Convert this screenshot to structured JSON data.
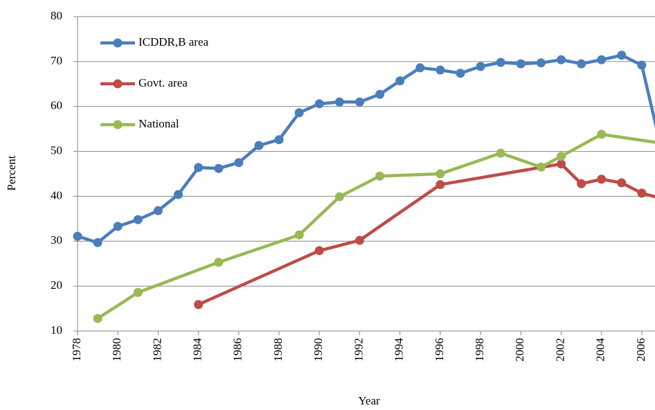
{
  "chart_data": {
    "type": "line",
    "x_label": "Year",
    "y_label": "Percent",
    "xlim": [
      1978,
      2007
    ],
    "ylim": [
      10,
      80
    ],
    "xticks": [
      1978,
      1980,
      1982,
      1984,
      1986,
      1988,
      1990,
      1992,
      1994,
      1996,
      1998,
      2000,
      2002,
      2004,
      2006
    ],
    "yticks": [
      10,
      20,
      30,
      40,
      50,
      60,
      70,
      80
    ],
    "grid": true,
    "legend": "upper left",
    "series": [
      {
        "name": "ICDDR,B area",
        "color": "#4a7ebb",
        "x": [
          1978,
          1979,
          1980,
          1981,
          1982,
          1983,
          1984,
          1985,
          1986,
          1987,
          1988,
          1989,
          1990,
          1991,
          1992,
          1993,
          1994,
          1995,
          1996,
          1997,
          1998,
          1999,
          2000,
          2001,
          2002,
          2003,
          2004,
          2005,
          2006,
          2007
        ],
        "values": [
          31.1,
          29.7,
          33.3,
          34.8,
          36.8,
          40.4,
          46.4,
          46.2,
          47.5,
          51.3,
          52.6,
          58.6,
          60.6,
          61.0,
          61.0,
          62.7,
          65.7,
          68.6,
          68.1,
          67.4,
          68.9,
          69.8,
          69.5,
          69.7,
          70.4,
          69.5,
          70.4,
          71.4,
          69.2,
          50
        ]
      },
      {
        "name": "Govt. area",
        "color": "#be4b48",
        "x": [
          1984,
          1990,
          1992,
          1996,
          2002,
          2003,
          2004,
          2005,
          2006,
          2007
        ],
        "values": [
          15.9,
          27.9,
          30.2,
          42.6,
          47.2,
          42.8,
          43.8,
          43.0,
          40.7,
          39.5
        ]
      },
      {
        "name": "National",
        "color": "#98b954",
        "x": [
          1979,
          1981,
          1985,
          1989,
          1991,
          1993,
          1996,
          1999,
          2001,
          2002,
          2004,
          2007
        ],
        "values": [
          12.8,
          18.6,
          25.3,
          31.4,
          39.9,
          44.5,
          45.0,
          49.6,
          46.5,
          48.9,
          53.8,
          51.8
        ]
      }
    ]
  }
}
